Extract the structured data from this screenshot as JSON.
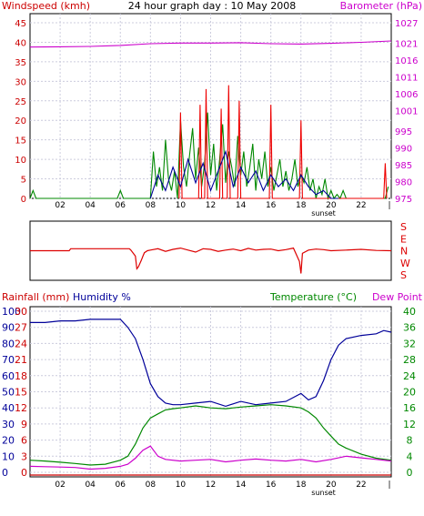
{
  "colors": {
    "wind_axis": "#cc0000",
    "baro_axis": "#cc00cc",
    "windspeed": "#008800",
    "gust": "#ee0000",
    "avg_wind": "#000099",
    "barometer": "#cc00cc",
    "direction": "#dd0000",
    "humidity": "#000099",
    "temperature": "#008800",
    "dewpoint": "#cc00cc",
    "rain": "#cc0000",
    "grid": "#ccccdd",
    "frame": "#000000"
  },
  "chart_data": [
    {
      "type": "line",
      "title": "24 hour graph day : 10 May 2008",
      "left_axis_label": "Windspeed (kmh)",
      "right_axis_label": "Barometer (hPa)",
      "x_ticks": [
        "02",
        "04",
        "06",
        "08",
        "10",
        "12",
        "14",
        "16",
        "18",
        "20",
        "22"
      ],
      "x_annotation": "sunset",
      "ylim_left": [
        0,
        45
      ],
      "y_ticks_left": [
        0,
        5,
        10,
        15,
        20,
        25,
        30,
        35,
        40,
        45
      ],
      "ylim_right": [
        975,
        1027
      ],
      "y_ticks_right": [
        975,
        980,
        985,
        990,
        995,
        1001,
        1006,
        1011,
        1016,
        1021,
        1027
      ],
      "grid": true,
      "series": [
        {
          "name": "Windspeed",
          "color_key": "windspeed",
          "x": [
            0,
            0.2,
            0.4,
            0.6,
            5.8,
            6.0,
            6.2,
            8.0,
            8.2,
            8.4,
            8.6,
            8.8,
            9.0,
            9.2,
            9.4,
            9.6,
            9.8,
            10.0,
            10.2,
            10.4,
            10.6,
            10.8,
            11.0,
            11.2,
            11.4,
            11.6,
            11.8,
            12.0,
            12.2,
            12.4,
            12.6,
            12.8,
            13.0,
            13.2,
            13.4,
            13.6,
            13.8,
            14.0,
            14.2,
            14.4,
            14.6,
            14.8,
            15.0,
            15.2,
            15.4,
            15.6,
            15.8,
            16.0,
            16.2,
            16.4,
            16.6,
            16.8,
            17.0,
            17.2,
            17.4,
            17.6,
            17.8,
            18.0,
            18.2,
            18.4,
            18.6,
            18.8,
            19.0,
            19.2,
            19.4,
            19.6,
            19.8,
            20.0,
            20.2,
            20.4,
            20.6,
            20.8,
            21.0,
            23.6,
            23.8
          ],
          "y": [
            0,
            2,
            0,
            0,
            0,
            2,
            0,
            0,
            12,
            3,
            8,
            2,
            15,
            5,
            2,
            7,
            0,
            20,
            8,
            3,
            11,
            18,
            5,
            13,
            3,
            9,
            22,
            6,
            14,
            2,
            10,
            19,
            4,
            12,
            8,
            3,
            16,
            6,
            12,
            3,
            8,
            14,
            2,
            10,
            5,
            12,
            3,
            8,
            2,
            6,
            10,
            3,
            7,
            2,
            5,
            10,
            3,
            6,
            4,
            8,
            2,
            5,
            0,
            3,
            1,
            5,
            0,
            2,
            0,
            1,
            0,
            2,
            0,
            0,
            3
          ]
        },
        {
          "name": "Gust",
          "color_key": "gust",
          "x": [
            9.9,
            10.0,
            10.1,
            11.2,
            11.3,
            11.4,
            11.6,
            11.7,
            11.8,
            12.6,
            12.7,
            12.8,
            13.1,
            13.2,
            13.3,
            13.8,
            13.9,
            14.0,
            15.9,
            16.0,
            16.1,
            17.9,
            18.0,
            18.1,
            23.5,
            23.6,
            23.7
          ],
          "y": [
            0,
            22,
            0,
            0,
            24,
            0,
            0,
            28,
            0,
            0,
            23,
            0,
            0,
            29,
            0,
            0,
            25,
            0,
            0,
            24,
            0,
            0,
            20,
            0,
            0,
            9,
            0
          ]
        },
        {
          "name": "Average wind",
          "color_key": "avg_wind",
          "x": [
            8.0,
            8.5,
            9.0,
            9.5,
            10.0,
            10.5,
            11.0,
            11.5,
            12.0,
            12.5,
            13.0,
            13.5,
            14.0,
            14.5,
            15.0,
            15.5,
            16.0,
            16.5,
            17.0,
            17.5,
            18.0,
            18.5,
            19.0,
            19.5,
            20.0,
            20.5
          ],
          "y": [
            0,
            6,
            2,
            8,
            3,
            10,
            4,
            9,
            2,
            7,
            12,
            3,
            8,
            4,
            7,
            2,
            6,
            3,
            5,
            2,
            6,
            3,
            1,
            2,
            0,
            0
          ]
        },
        {
          "name": "Barometer",
          "color_key": "barometer",
          "axis": "right",
          "x": [
            0,
            2,
            4,
            6,
            8,
            10,
            12,
            14,
            16,
            18,
            20,
            22,
            24
          ],
          "y": [
            1019.8,
            1019.9,
            1020.0,
            1020.3,
            1020.8,
            1021.0,
            1021.0,
            1021.1,
            1020.8,
            1020.7,
            1020.9,
            1021.2,
            1021.6
          ]
        }
      ]
    },
    {
      "type": "line",
      "title": "",
      "right_axis_label": "S E N W S",
      "y_ticks_right": [
        "S",
        "E",
        "N",
        "W",
        "S"
      ],
      "ylim": [
        0,
        360
      ],
      "series": [
        {
          "name": "Wind direction",
          "color_key": "direction",
          "x": [
            0,
            2.6,
            2.7,
            6.6,
            6.7,
            7.0,
            7.1,
            7.2,
            7.4,
            7.5,
            7.6,
            7.8,
            8.0,
            8.5,
            9.0,
            9.5,
            10.0,
            10.5,
            11.0,
            11.5,
            12.0,
            12.5,
            13.0,
            13.5,
            14.0,
            14.5,
            15.0,
            15.5,
            16.0,
            16.5,
            17.0,
            17.5,
            17.9,
            18.0,
            18.1,
            18.5,
            19.0,
            19.5,
            20.0,
            21.0,
            22.0,
            23.0,
            24.0
          ],
          "y": [
            180,
            180,
            165,
            165,
            175,
            220,
            315,
            300,
            250,
            220,
            195,
            180,
            175,
            165,
            185,
            170,
            160,
            175,
            190,
            165,
            170,
            185,
            175,
            168,
            180,
            162,
            175,
            170,
            168,
            180,
            172,
            160,
            260,
            350,
            200,
            175,
            168,
            172,
            180,
            175,
            170,
            178,
            180
          ]
        }
      ]
    },
    {
      "type": "line",
      "title": "",
      "left_axis_labels": [
        "Rainfall (mm)",
        "Humidity %"
      ],
      "right_axis_labels": [
        "Temperature (°C)",
        "Dew Point"
      ],
      "x_ticks": [
        "02",
        "04",
        "06",
        "08",
        "10",
        "12",
        "14",
        "16",
        "18",
        "20",
        "22"
      ],
      "x_annotation": "sunset",
      "y_ticks_humidity": [
        0,
        10,
        20,
        30,
        40,
        50,
        60,
        70,
        80,
        90,
        100
      ],
      "y_ticks_rain": [
        0,
        3,
        6,
        9,
        12,
        15,
        18,
        21,
        24,
        27,
        30
      ],
      "y_ticks_temp": [
        0,
        4,
        8,
        12,
        16,
        20,
        24,
        28,
        32,
        36,
        40
      ],
      "ylim_humidity": [
        0,
        100
      ],
      "ylim_temp": [
        0,
        40
      ],
      "grid": true,
      "series": [
        {
          "name": "Humidity",
          "color_key": "humidity",
          "x": [
            0,
            1,
            2,
            3,
            4,
            5,
            6,
            6.5,
            7,
            7.5,
            8,
            8.5,
            9,
            9.5,
            10,
            11,
            12,
            13,
            14,
            15,
            16,
            17,
            18,
            18.5,
            19,
            19.5,
            20,
            20.5,
            21,
            22,
            23,
            23.5,
            24
          ],
          "y": [
            93,
            93,
            94,
            94,
            95,
            95,
            95,
            90,
            83,
            70,
            55,
            47,
            43,
            42,
            42,
            43,
            44,
            41,
            44,
            42,
            43,
            44,
            49,
            45,
            47,
            57,
            70,
            79,
            83,
            85,
            86,
            88,
            87
          ]
        },
        {
          "name": "Temperature",
          "color_key": "temperature",
          "x": [
            0,
            1,
            2,
            3,
            4,
            5,
            6,
            6.5,
            7,
            7.5,
            8,
            8.5,
            9,
            9.5,
            10,
            11,
            12,
            13,
            14,
            15,
            16,
            17,
            18,
            18.5,
            19,
            19.5,
            20,
            20.5,
            21,
            22,
            23,
            24
          ],
          "y": [
            3.0,
            2.8,
            2.5,
            2.2,
            1.8,
            2.0,
            3.0,
            4.0,
            7.0,
            11.0,
            13.5,
            14.5,
            15.5,
            15.8,
            16.0,
            16.5,
            16.0,
            15.8,
            16.2,
            16.5,
            16.8,
            16.5,
            16.0,
            15.0,
            13.5,
            11.0,
            9.0,
            7.0,
            6.0,
            4.5,
            3.5,
            3.0
          ]
        },
        {
          "name": "Dew Point",
          "color_key": "dewpoint",
          "x": [
            0,
            1,
            2,
            3,
            4,
            5,
            6,
            6.5,
            7,
            7.5,
            8,
            8.5,
            9,
            10,
            11,
            12,
            13,
            14,
            15,
            16,
            17,
            18,
            19,
            20,
            21,
            22,
            23,
            24
          ],
          "y": [
            1.5,
            1.4,
            1.3,
            1.2,
            0.8,
            1.0,
            1.5,
            2.0,
            3.5,
            5.5,
            6.5,
            4.0,
            3.2,
            2.8,
            3.0,
            3.2,
            2.6,
            3.0,
            3.3,
            3.0,
            2.8,
            3.2,
            2.6,
            3.2,
            4.0,
            3.6,
            3.2,
            2.8
          ]
        },
        {
          "name": "Rainfall",
          "color_key": "rain",
          "axis": "rain",
          "x": [
            0,
            24
          ],
          "y": [
            0,
            0
          ]
        }
      ]
    }
  ]
}
